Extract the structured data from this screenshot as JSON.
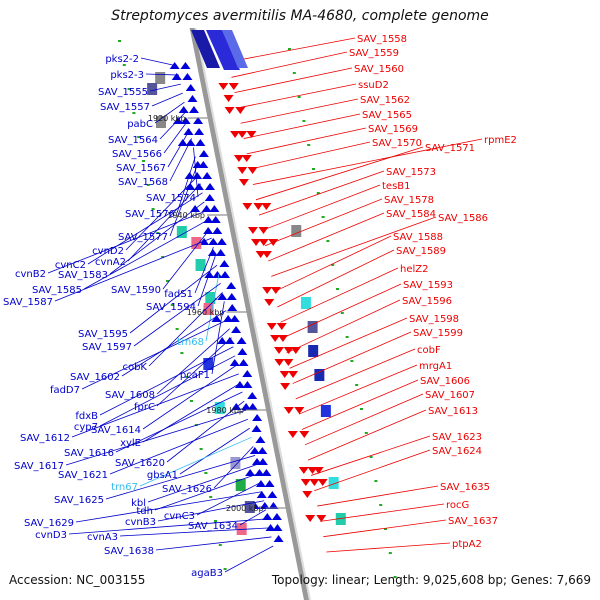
{
  "title": "Streptomyces avermitilis MA-4680, complete genome",
  "accession": "Accession: NC_003155",
  "summary": "Topology: linear; Length: 9,025,608 bp; Genes: 7,669",
  "kbp_marks": [
    "1920 kbp",
    "1940 kbp",
    "1960 kbp",
    "1980 kbp",
    "2000 kbp"
  ],
  "left_labels": [
    {
      "text": "pks2-2",
      "color": "#0000cc"
    },
    {
      "text": "pks2-3",
      "color": "#0000cc"
    },
    {
      "text": "SAV_1555",
      "color": "#0000cc"
    },
    {
      "text": "SAV_1557",
      "color": "#0000cc"
    },
    {
      "text": "pabC",
      "color": "#0000cc"
    },
    {
      "text": "SAV_1564",
      "color": "#0000cc"
    },
    {
      "text": "SAV_1566",
      "color": "#0000cc"
    },
    {
      "text": "SAV_1567",
      "color": "#0000cc"
    },
    {
      "text": "SAV_1568",
      "color": "#0000cc"
    },
    {
      "text": "SAV_1574",
      "color": "#0000cc"
    },
    {
      "text": "SAV_1576",
      "color": "#0000cc"
    },
    {
      "text": "SAV_1577",
      "color": "#0000cc"
    },
    {
      "text": "cvnD2",
      "color": "#0000cc"
    },
    {
      "text": "cvnA2",
      "color": "#0000cc"
    },
    {
      "text": "cvnC2",
      "color": "#0000cc"
    },
    {
      "text": "SAV_1583",
      "color": "#0000cc"
    },
    {
      "text": "cvnB2",
      "color": "#0000cc"
    },
    {
      "text": "SAV_1585",
      "color": "#0000cc"
    },
    {
      "text": "SAV_1590",
      "color": "#0000cc"
    },
    {
      "text": "SAV_1587",
      "color": "#0000cc"
    },
    {
      "text": "fadS1",
      "color": "#0000cc"
    },
    {
      "text": "SAV_1594",
      "color": "#0000cc"
    },
    {
      "text": "SAV_1595",
      "color": "#0000cc"
    },
    {
      "text": "trn68",
      "color": "#33bbee"
    },
    {
      "text": "SAV_1597",
      "color": "#0000cc"
    },
    {
      "text": "cobK",
      "color": "#0000cc"
    },
    {
      "text": "pcaF1",
      "color": "#0000cc"
    },
    {
      "text": "SAV_1602",
      "color": "#0000cc"
    },
    {
      "text": "fadD7",
      "color": "#0000cc"
    },
    {
      "text": "SAV_1608",
      "color": "#0000cc"
    },
    {
      "text": "fprC",
      "color": "#0000cc"
    },
    {
      "text": "fdxB",
      "color": "#0000cc"
    },
    {
      "text": "cyp7",
      "color": "#0000cc"
    },
    {
      "text": "SAV_1614",
      "color": "#0000cc"
    },
    {
      "text": "SAV_1612",
      "color": "#0000cc"
    },
    {
      "text": "xylE",
      "color": "#0000cc"
    },
    {
      "text": "SAV_1616",
      "color": "#0000cc"
    },
    {
      "text": "SAV_1620",
      "color": "#0000cc"
    },
    {
      "text": "SAV_1617",
      "color": "#0000cc"
    },
    {
      "text": "SAV_1621",
      "color": "#0000cc"
    },
    {
      "text": "gbsA1",
      "color": "#0000cc"
    },
    {
      "text": "trn67",
      "color": "#33bbee"
    },
    {
      "text": "SAV_1626",
      "color": "#0000cc"
    },
    {
      "text": "SAV_1625",
      "color": "#0000cc"
    },
    {
      "text": "kbl",
      "color": "#0000cc"
    },
    {
      "text": "tdh",
      "color": "#0000cc"
    },
    {
      "text": "cvnC3",
      "color": "#0000cc"
    },
    {
      "text": "SAV_1629",
      "color": "#0000cc"
    },
    {
      "text": "cvnB3",
      "color": "#0000cc"
    },
    {
      "text": "SAV_1634",
      "color": "#0000cc"
    },
    {
      "text": "cvnD3",
      "color": "#0000cc"
    },
    {
      "text": "cvnA3",
      "color": "#0000cc"
    },
    {
      "text": "SAV_1638",
      "color": "#0000cc"
    },
    {
      "text": "agaB3",
      "color": "#0000cc"
    }
  ],
  "right_labels": [
    {
      "text": "SAV_1558",
      "color": "#ee0000"
    },
    {
      "text": "SAV_1559",
      "color": "#ee0000"
    },
    {
      "text": "SAV_1560",
      "color": "#ee0000"
    },
    {
      "text": "ssuD2",
      "color": "#ee0000"
    },
    {
      "text": "SAV_1562",
      "color": "#ee0000"
    },
    {
      "text": "SAV_1565",
      "color": "#ee0000"
    },
    {
      "text": "SAV_1569",
      "color": "#ee0000"
    },
    {
      "text": "SAV_1570",
      "color": "#ee0000"
    },
    {
      "text": "rpmE2",
      "color": "#ee0000"
    },
    {
      "text": "SAV_1571",
      "color": "#ee0000"
    },
    {
      "text": "SAV_1573",
      "color": "#ee0000"
    },
    {
      "text": "tesB1",
      "color": "#ee0000"
    },
    {
      "text": "SAV_1578",
      "color": "#ee0000"
    },
    {
      "text": "SAV_1584",
      "color": "#ee0000"
    },
    {
      "text": "SAV_1586",
      "color": "#ee0000"
    },
    {
      "text": "SAV_1588",
      "color": "#ee0000"
    },
    {
      "text": "SAV_1589",
      "color": "#ee0000"
    },
    {
      "text": "helZ2",
      "color": "#ee0000"
    },
    {
      "text": "SAV_1593",
      "color": "#ee0000"
    },
    {
      "text": "SAV_1596",
      "color": "#ee0000"
    },
    {
      "text": "SAV_1598",
      "color": "#ee0000"
    },
    {
      "text": "SAV_1599",
      "color": "#ee0000"
    },
    {
      "text": "cobF",
      "color": "#ee0000"
    },
    {
      "text": "mrgA1",
      "color": "#ee0000"
    },
    {
      "text": "SAV_1606",
      "color": "#ee0000"
    },
    {
      "text": "SAV_1607",
      "color": "#ee0000"
    },
    {
      "text": "SAV_1613",
      "color": "#ee0000"
    },
    {
      "text": "SAV_1623",
      "color": "#ee0000"
    },
    {
      "text": "SAV_1624",
      "color": "#ee0000"
    },
    {
      "text": "SAV_1635",
      "color": "#ee0000"
    },
    {
      "text": "rocG",
      "color": "#ee0000"
    },
    {
      "text": "SAV_1637",
      "color": "#ee0000"
    },
    {
      "text": "ptpA2",
      "color": "#ee0000"
    }
  ]
}
